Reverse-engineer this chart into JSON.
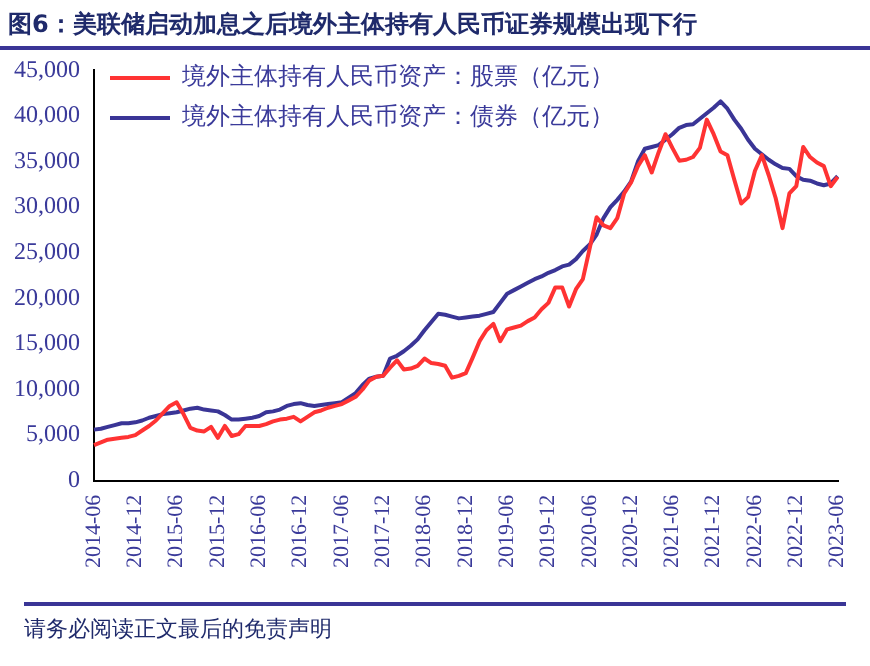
{
  "chart_data": {
    "type": "line",
    "title": "图6：美联储启动加息之后境外主体持有人民币证券规模出现下行",
    "categories": [
      "2014-06",
      null,
      null,
      null,
      null,
      null,
      "2014-12",
      null,
      null,
      null,
      null,
      null,
      "2015-06",
      null,
      null,
      null,
      null,
      null,
      "2015-12",
      null,
      null,
      null,
      null,
      null,
      "2016-06",
      null,
      null,
      null,
      null,
      null,
      "2016-12",
      null,
      null,
      null,
      null,
      null,
      "2017-06",
      null,
      null,
      null,
      null,
      null,
      "2017-12",
      null,
      null,
      null,
      null,
      null,
      "2018-06",
      null,
      null,
      null,
      null,
      null,
      "2018-12",
      null,
      null,
      null,
      null,
      null,
      "2019-06",
      null,
      null,
      null,
      null,
      null,
      "2019-12",
      null,
      null,
      null,
      null,
      null,
      "2020-06",
      null,
      null,
      null,
      null,
      null,
      "2020-12",
      null,
      null,
      null,
      null,
      null,
      "2021-06",
      null,
      null,
      null,
      null,
      null,
      "2021-12",
      null,
      null,
      null,
      null,
      null,
      "2022-06",
      null,
      null,
      null,
      null,
      null,
      "2022-12",
      null,
      null,
      null,
      null,
      null,
      "2023-06"
    ],
    "series": [
      {
        "name": "境外主体持有人民币资产：股票（亿元）",
        "color": "#ff3333",
        "values": [
          3900,
          4200,
          4500,
          4600,
          4700,
          4800,
          5000,
          5500,
          6000,
          6600,
          7400,
          8200,
          8600,
          7300,
          5800,
          5500,
          5400,
          5900,
          4700,
          6000,
          4900,
          5100,
          6000,
          6000,
          6000,
          6200,
          6500,
          6700,
          6800,
          7000,
          6500,
          7000,
          7500,
          7700,
          8000,
          8200,
          8400,
          8800,
          9200,
          10000,
          11000,
          11400,
          11500,
          12400,
          13200,
          12200,
          12300,
          12600,
          13400,
          12900,
          12800,
          12600,
          11300,
          11500,
          11800,
          13500,
          15300,
          16500,
          17200,
          15300,
          16600,
          16800,
          17000,
          17500,
          17900,
          18800,
          19500,
          21200,
          21200,
          19100,
          21000,
          22100,
          25500,
          28900,
          28000,
          27700,
          28800,
          31500,
          32700,
          34500,
          35700,
          33800,
          36000,
          38000,
          36500,
          35100,
          35200,
          35500,
          36500,
          39600,
          38000,
          36100,
          35700,
          33000,
          30400,
          31100,
          34000,
          35700,
          33500,
          31000,
          27700,
          31500,
          32300,
          36600,
          35500,
          34900,
          34500,
          32300,
          33300
        ]
      },
      {
        "name": "境外主体持有人民币资产：债券（亿元）",
        "color": "#3a3596",
        "values": [
          5600,
          5700,
          5900,
          6100,
          6300,
          6300,
          6400,
          6600,
          6900,
          7100,
          7300,
          7400,
          7500,
          7700,
          7900,
          8000,
          7800,
          7700,
          7600,
          7200,
          6700,
          6700,
          6800,
          6900,
          7100,
          7500,
          7600,
          7800,
          8200,
          8400,
          8500,
          8300,
          8200,
          8300,
          8400,
          8500,
          8600,
          9100,
          9600,
          10500,
          11200,
          11400,
          11500,
          13400,
          13700,
          14200,
          14800,
          15500,
          16500,
          17400,
          18300,
          18200,
          18000,
          17800,
          17900,
          18000,
          18100,
          18300,
          18500,
          19500,
          20500,
          20900,
          21300,
          21700,
          22100,
          22400,
          22800,
          23100,
          23500,
          23700,
          24300,
          25200,
          25900,
          27000,
          28800,
          30000,
          30800,
          31700,
          32800,
          35000,
          36400,
          36600,
          36800,
          37400,
          38000,
          38700,
          39000,
          39100,
          39700,
          40300,
          40900,
          41600,
          40800,
          39600,
          38600,
          37400,
          36400,
          35800,
          35200,
          34700,
          34300,
          34200,
          33400,
          33000,
          32900,
          32600,
          32400,
          32600,
          33400
        ]
      }
    ],
    "ylim": [
      0,
      45000
    ],
    "yticks": [
      0,
      {
        "value": 5000,
        "label": "5,000"
      },
      {
        "value": 10000,
        "label": "10,000"
      },
      {
        "value": 15000,
        "label": "15,000"
      },
      {
        "value": 20000,
        "label": "20,000"
      },
      {
        "value": 25000,
        "label": "25,000"
      },
      {
        "value": 30000,
        "label": "30,000"
      },
      {
        "value": 35000,
        "label": "35,000"
      },
      {
        "value": 40000,
        "label": "40,000"
      },
      {
        "value": 45000,
        "label": "45,000"
      }
    ],
    "grid": false,
    "legend": "top left",
    "marker": "none",
    "line_style": "solid",
    "annotations": [
      "请务必阅读正文最后的免责声明"
    ]
  }
}
